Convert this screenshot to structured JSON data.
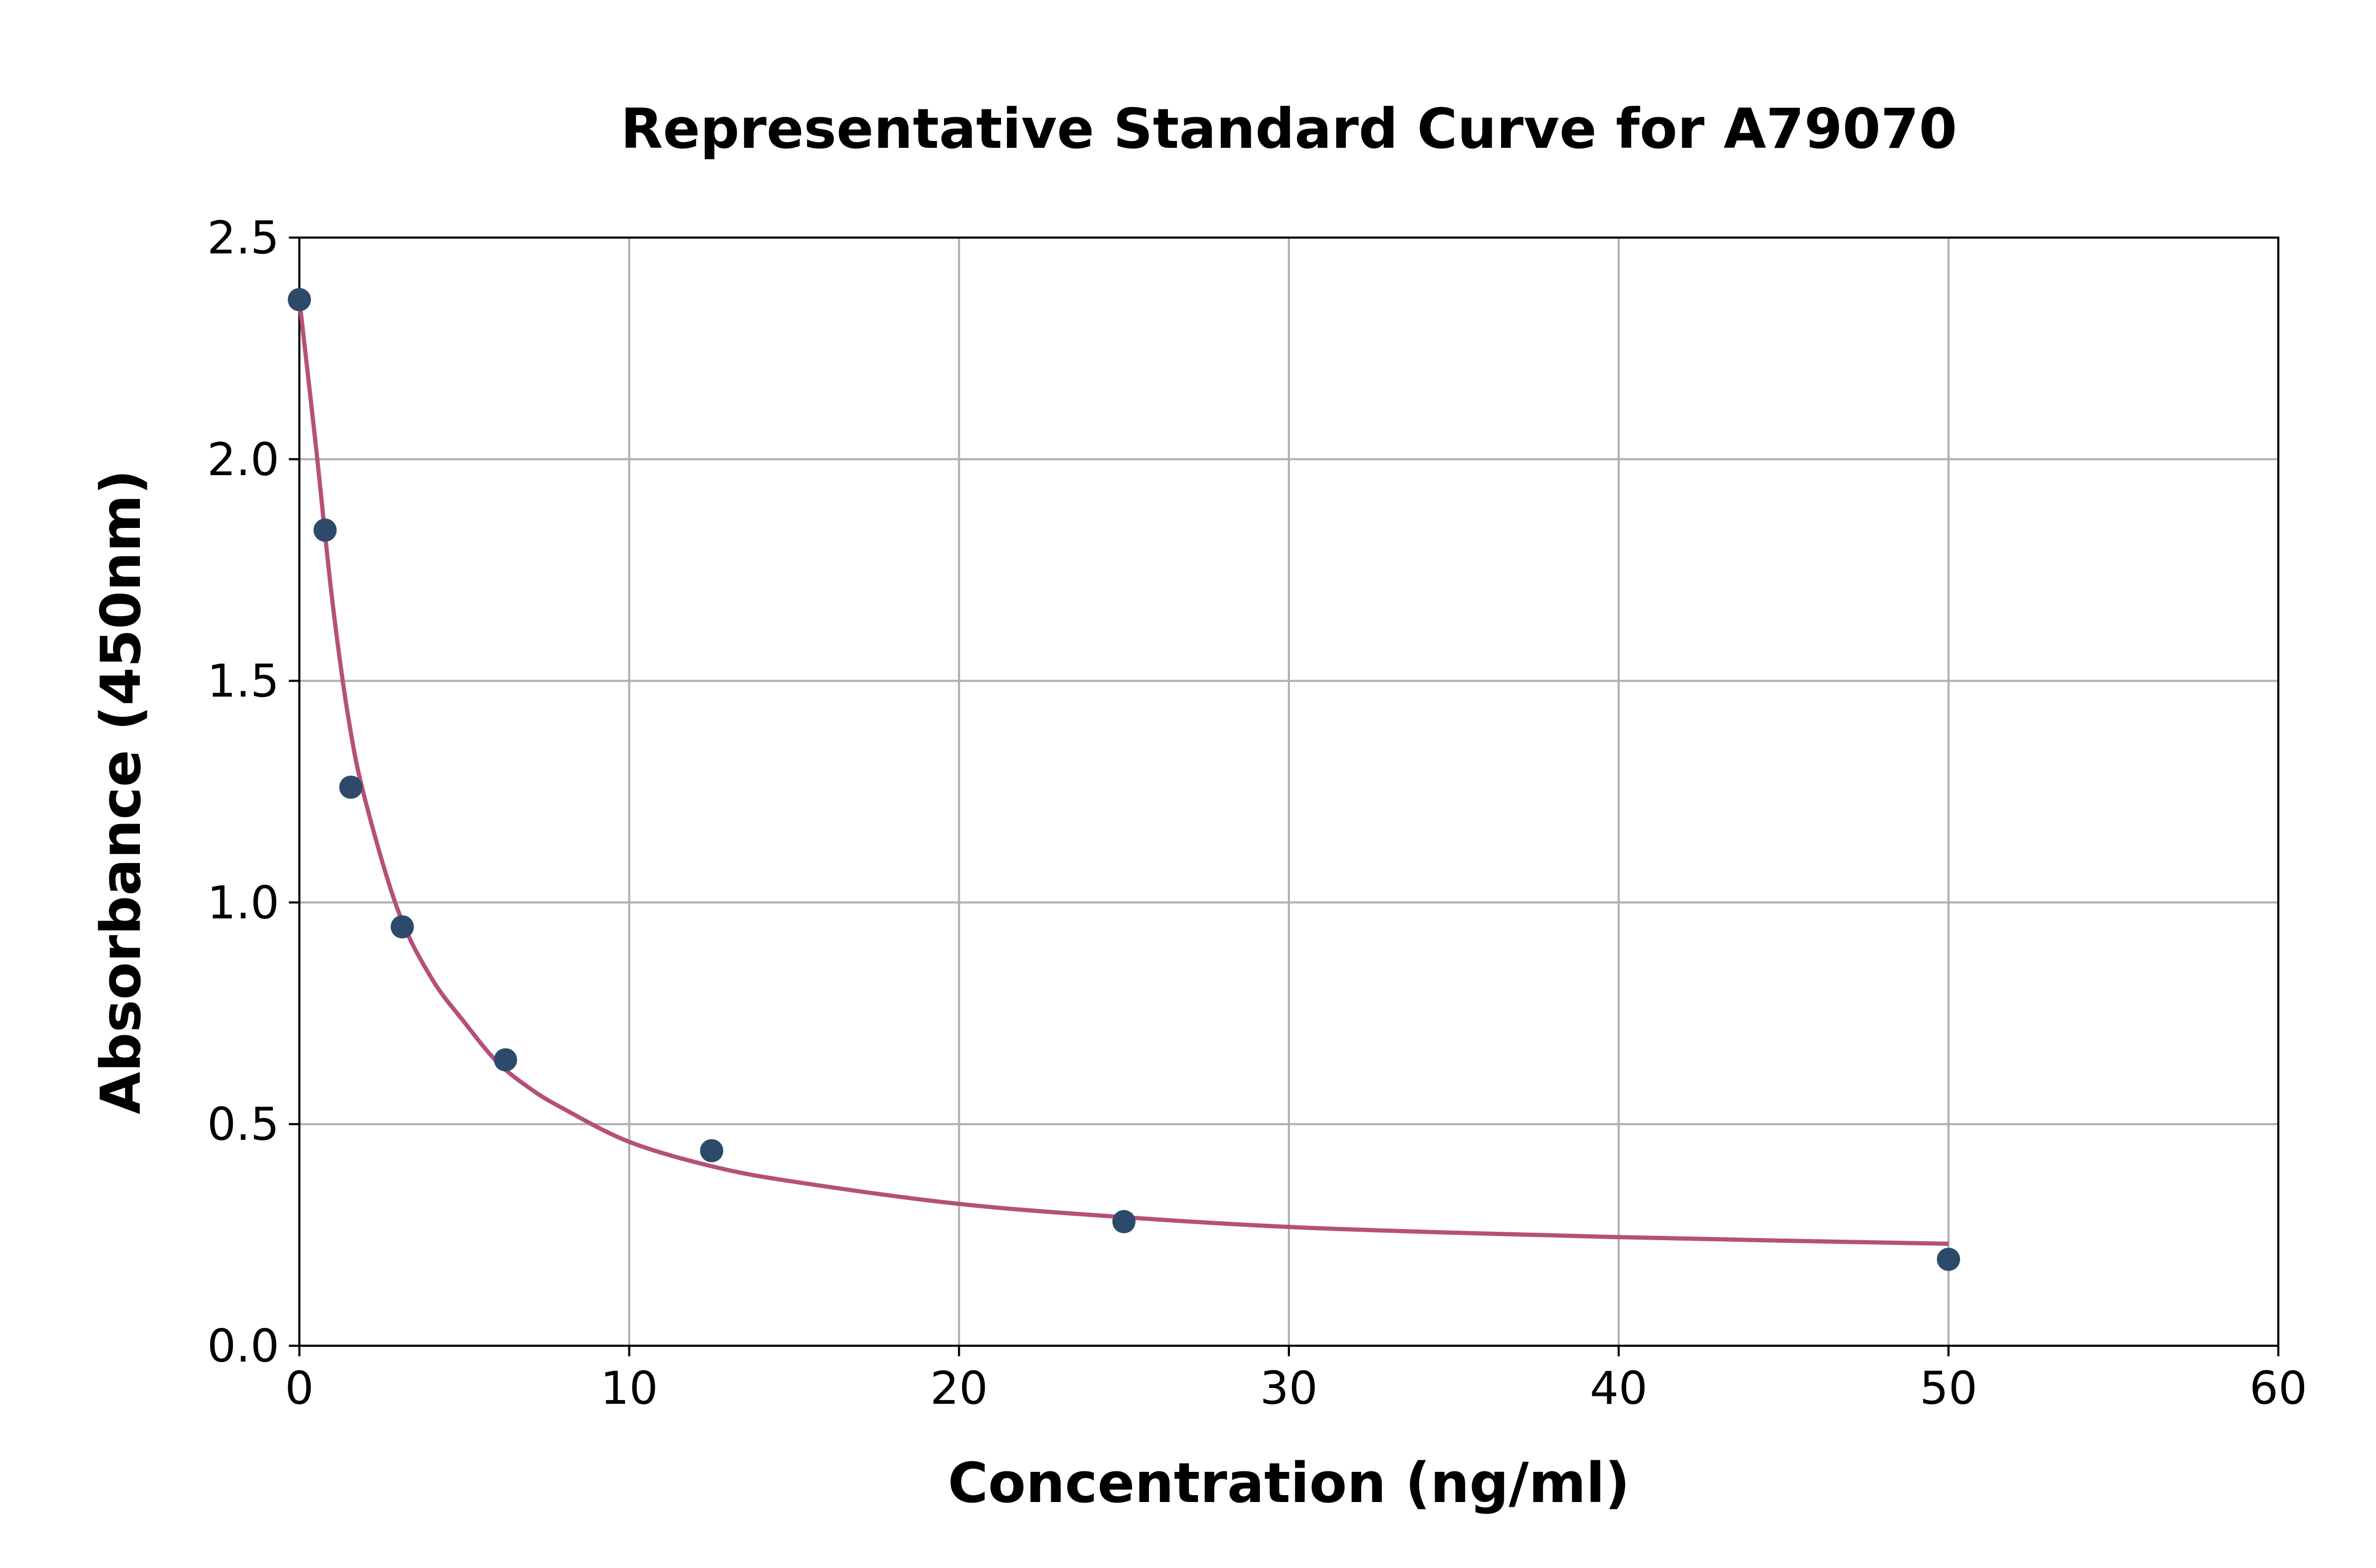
{
  "chart_data": {
    "type": "scatter",
    "title": "Representative Standard Curve for A79070",
    "xlabel": "Concentration (ng/ml)",
    "ylabel": "Absorbance (450nm)",
    "xlim": [
      0,
      60
    ],
    "ylim": [
      0,
      2.5
    ],
    "xticks": [
      "0",
      "10",
      "20",
      "30",
      "40",
      "50",
      "60"
    ],
    "yticks": [
      "0.0",
      "0.5",
      "1.0",
      "1.5",
      "2.0",
      "2.5"
    ],
    "grid": true,
    "series": [
      {
        "kind": "points",
        "color": "#2e4a6b",
        "x": [
          0,
          0.78,
          1.56,
          3.12,
          6.25,
          12.5,
          25,
          50
        ],
        "y": [
          2.36,
          1.84,
          1.26,
          0.945,
          0.645,
          0.44,
          0.28,
          0.195
        ]
      },
      {
        "kind": "fit-curve",
        "color": "#b5507a",
        "x": [
          0,
          0.5,
          1,
          1.5,
          2,
          3,
          4,
          5,
          6,
          7,
          8,
          10,
          12.5,
          15,
          20,
          25,
          30,
          35,
          40,
          45,
          50
        ],
        "y": [
          2.36,
          2.03,
          1.68,
          1.41,
          1.23,
          0.98,
          0.83,
          0.73,
          0.64,
          0.58,
          0.535,
          0.46,
          0.405,
          0.37,
          0.32,
          0.29,
          0.268,
          0.255,
          0.245,
          0.237,
          0.23
        ]
      }
    ]
  }
}
